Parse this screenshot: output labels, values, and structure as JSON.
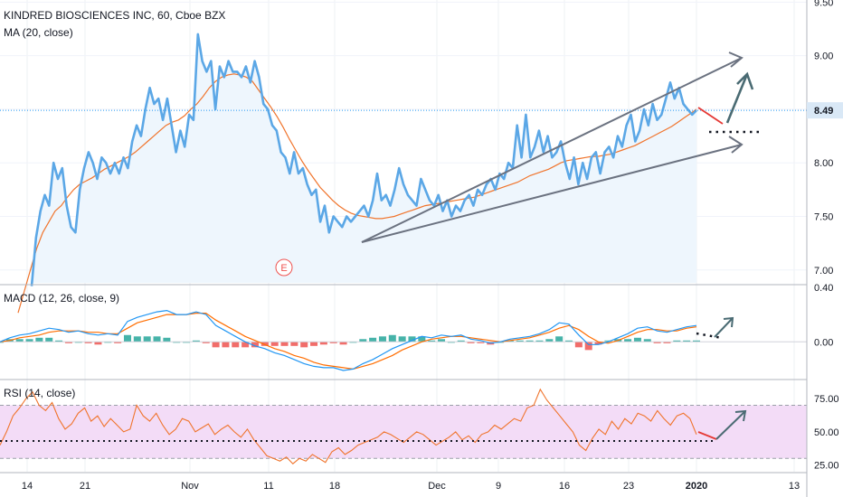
{
  "header": {
    "title": "KINDRED BIOSCIENCES INC, 60, Cboe BZX",
    "ma_label": "MA (20, close)",
    "macd_label": "MACD (12, 26, close, 9)",
    "rsi_label": "RSI (14, close)"
  },
  "colors": {
    "price": "#5ba7e6",
    "ma": "#f0742c",
    "price_fill": "#eef6fd",
    "macd_line": "#2196f3",
    "signal_line": "#ff6d00",
    "hist_pos": "#26a69a",
    "hist_neg": "#ef5350",
    "drawing": "#6b7280",
    "rsi_band": "#f3dcf7",
    "rsi_line": "#f0742c",
    "last_price_line": "#2196f3",
    "earnings": "#ef5350"
  },
  "earnings_marker": "E",
  "chart_data": [
    {
      "type": "line",
      "panel": "price",
      "title": "KINDRED BIOSCIENCES INC, 60, Cboe BZX",
      "x_tick_labels": [
        "14",
        "21",
        "Nov",
        "11",
        "18",
        "Dec",
        "9",
        "16",
        "23",
        "2020",
        "13"
      ],
      "y_tick_labels": [
        "9.50",
        "9.00",
        "8.50",
        "8.00",
        "7.50",
        "7.00"
      ],
      "ylim": [
        6.88,
        9.52
      ],
      "last_price_label": "8.49",
      "series": [
        {
          "name": "Price",
          "values": [
            6.85,
            7.3,
            7.55,
            7.7,
            7.6,
            8.0,
            7.85,
            7.95,
            7.6,
            7.4,
            7.35,
            7.75,
            7.95,
            8.1,
            8.0,
            7.85,
            8.05,
            8.0,
            7.9,
            8.0,
            7.9,
            8.05,
            7.95,
            8.2,
            8.35,
            8.25,
            8.5,
            8.7,
            8.55,
            8.6,
            8.4,
            8.6,
            8.35,
            8.1,
            8.3,
            8.15,
            8.45,
            8.4,
            9.2,
            8.95,
            8.85,
            8.95,
            8.5,
            8.9,
            8.8,
            8.95,
            8.85,
            8.85,
            8.8,
            8.9,
            8.75,
            8.95,
            8.8,
            8.55,
            8.5,
            8.35,
            8.3,
            8.1,
            8.05,
            7.9,
            8.1,
            7.9,
            7.95,
            7.8,
            7.7,
            7.75,
            7.45,
            7.6,
            7.35,
            7.5,
            7.45,
            7.4,
            7.5,
            7.45,
            7.5,
            7.55,
            7.6,
            7.5,
            7.65,
            7.9,
            7.65,
            7.7,
            7.6,
            7.75,
            7.95,
            7.8,
            7.7,
            7.65,
            7.6,
            7.85,
            7.75,
            7.65,
            7.6,
            7.7,
            7.55,
            7.65,
            7.5,
            7.6,
            7.55,
            7.65,
            7.7,
            7.6,
            7.75,
            7.7,
            7.8,
            7.85,
            7.75,
            7.9,
            7.85,
            8.0,
            7.95,
            8.35,
            8.05,
            8.45,
            8.05,
            8.15,
            8.3,
            8.1,
            8.25,
            8.05,
            8.1,
            8.2,
            8.0,
            7.85,
            8.05,
            7.8,
            8.0,
            7.85,
            8.05,
            8.1,
            7.9,
            8.1,
            8.15,
            8.05,
            8.25,
            8.15,
            8.35,
            8.45,
            8.2,
            8.3,
            8.5,
            8.35,
            8.55,
            8.4,
            8.45,
            8.6,
            8.75,
            8.6,
            8.7,
            8.55,
            8.5,
            8.45,
            8.49
          ]
        },
        {
          "name": "MA (20, close)",
          "values": [
            6.6,
            6.8,
            7.0,
            7.2,
            7.35,
            7.45,
            7.55,
            7.6,
            7.68,
            7.75,
            7.8,
            7.83,
            7.86,
            7.9,
            7.94,
            7.97,
            8.0,
            8.03,
            8.06,
            8.1,
            8.15,
            8.2,
            8.25,
            8.3,
            8.35,
            8.38,
            8.4,
            8.44,
            8.5,
            8.55,
            8.62,
            8.7,
            8.76,
            8.8,
            8.82,
            8.83,
            8.82,
            8.8,
            8.76,
            8.68,
            8.6,
            8.52,
            8.43,
            8.33,
            8.22,
            8.12,
            8.02,
            7.93,
            7.85,
            7.77,
            7.71,
            7.65,
            7.6,
            7.56,
            7.53,
            7.51,
            7.5,
            7.49,
            7.48,
            7.48,
            7.49,
            7.5,
            7.52,
            7.54,
            7.56,
            7.58,
            7.6,
            7.61,
            7.62,
            7.63,
            7.64,
            7.65,
            7.66,
            7.67,
            7.68,
            7.7,
            7.72,
            7.74,
            7.76,
            7.78,
            7.8,
            7.82,
            7.85,
            7.88,
            7.9,
            7.92,
            7.94,
            7.97,
            8.0,
            8.02,
            8.03,
            8.04,
            8.05,
            8.06,
            8.06,
            8.07,
            8.08,
            8.1,
            8.12,
            8.14,
            8.16,
            8.19,
            8.22,
            8.25,
            8.28,
            8.31,
            8.34,
            8.38,
            8.42,
            8.46,
            8.5
          ]
        }
      ],
      "annotations": [
        "E"
      ]
    },
    {
      "type": "line",
      "panel": "macd",
      "title": "MACD (12, 26, close, 9)",
      "y_tick_labels": [
        "0.40",
        "0.00"
      ],
      "ylim": [
        -0.27,
        0.4
      ],
      "series": [
        {
          "name": "MACD",
          "values": [
            0.0,
            0.03,
            0.05,
            0.06,
            0.08,
            0.1,
            0.09,
            0.07,
            0.08,
            0.06,
            0.05,
            0.06,
            0.05,
            0.15,
            0.18,
            0.2,
            0.22,
            0.23,
            0.2,
            0.2,
            0.22,
            0.2,
            0.12,
            0.08,
            0.04,
            0.0,
            -0.03,
            -0.05,
            -0.08,
            -0.1,
            -0.13,
            -0.16,
            -0.18,
            -0.19,
            -0.19,
            -0.21,
            -0.2,
            -0.16,
            -0.13,
            -0.09,
            -0.05,
            -0.02,
            0.01,
            0.04,
            0.03,
            0.05,
            0.04,
            0.05,
            0.02,
            0.01,
            -0.01,
            0.0,
            0.02,
            0.03,
            0.04,
            0.06,
            0.09,
            0.14,
            0.13,
            0.05,
            -0.02,
            -0.02,
            0.0,
            0.03,
            0.06,
            0.1,
            0.11,
            0.08,
            0.07,
            0.09,
            0.11,
            0.12
          ]
        },
        {
          "name": "Signal",
          "values": [
            0.0,
            0.01,
            0.03,
            0.04,
            0.05,
            0.07,
            0.08,
            0.08,
            0.08,
            0.07,
            0.07,
            0.06,
            0.06,
            0.1,
            0.14,
            0.16,
            0.18,
            0.2,
            0.2,
            0.2,
            0.21,
            0.21,
            0.16,
            0.12,
            0.08,
            0.04,
            0.01,
            -0.02,
            -0.05,
            -0.07,
            -0.1,
            -0.12,
            -0.15,
            -0.17,
            -0.18,
            -0.19,
            -0.2,
            -0.18,
            -0.16,
            -0.13,
            -0.1,
            -0.06,
            -0.03,
            0.0,
            0.02,
            0.03,
            0.04,
            0.04,
            0.03,
            0.02,
            0.01,
            0.0,
            0.01,
            0.02,
            0.03,
            0.05,
            0.07,
            0.1,
            0.12,
            0.09,
            0.04,
            0.0,
            -0.01,
            0.01,
            0.04,
            0.07,
            0.09,
            0.09,
            0.08,
            0.08,
            0.1,
            0.11
          ]
        }
      ]
    },
    {
      "type": "line",
      "panel": "rsi",
      "title": "RSI (14, close)",
      "y_tick_labels": [
        "75.00",
        "50.00",
        "25.00"
      ],
      "ylim": [
        20,
        88
      ],
      "band": [
        30,
        70
      ],
      "series": [
        {
          "name": "RSI",
          "values": [
            40,
            50,
            62,
            68,
            75,
            80,
            70,
            66,
            72,
            60,
            52,
            56,
            64,
            68,
            58,
            62,
            54,
            60,
            55,
            50,
            52,
            70,
            62,
            58,
            64,
            55,
            48,
            52,
            60,
            58,
            50,
            53,
            56,
            48,
            52,
            55,
            50,
            46,
            52,
            44,
            38,
            32,
            30,
            28,
            31,
            26,
            30,
            28,
            33,
            30,
            27,
            35,
            38,
            33,
            36,
            40,
            42,
            44,
            46,
            50,
            48,
            45,
            42,
            46,
            50,
            48,
            44,
            40,
            43,
            46,
            50,
            44,
            47,
            42,
            48,
            50,
            55,
            52,
            56,
            60,
            58,
            68,
            70,
            82,
            74,
            68,
            62,
            56,
            50,
            40,
            36,
            45,
            52,
            48,
            58,
            52,
            60,
            56,
            64,
            62,
            58,
            66,
            60,
            55,
            62,
            64,
            60,
            48
          ]
        }
      ]
    }
  ]
}
